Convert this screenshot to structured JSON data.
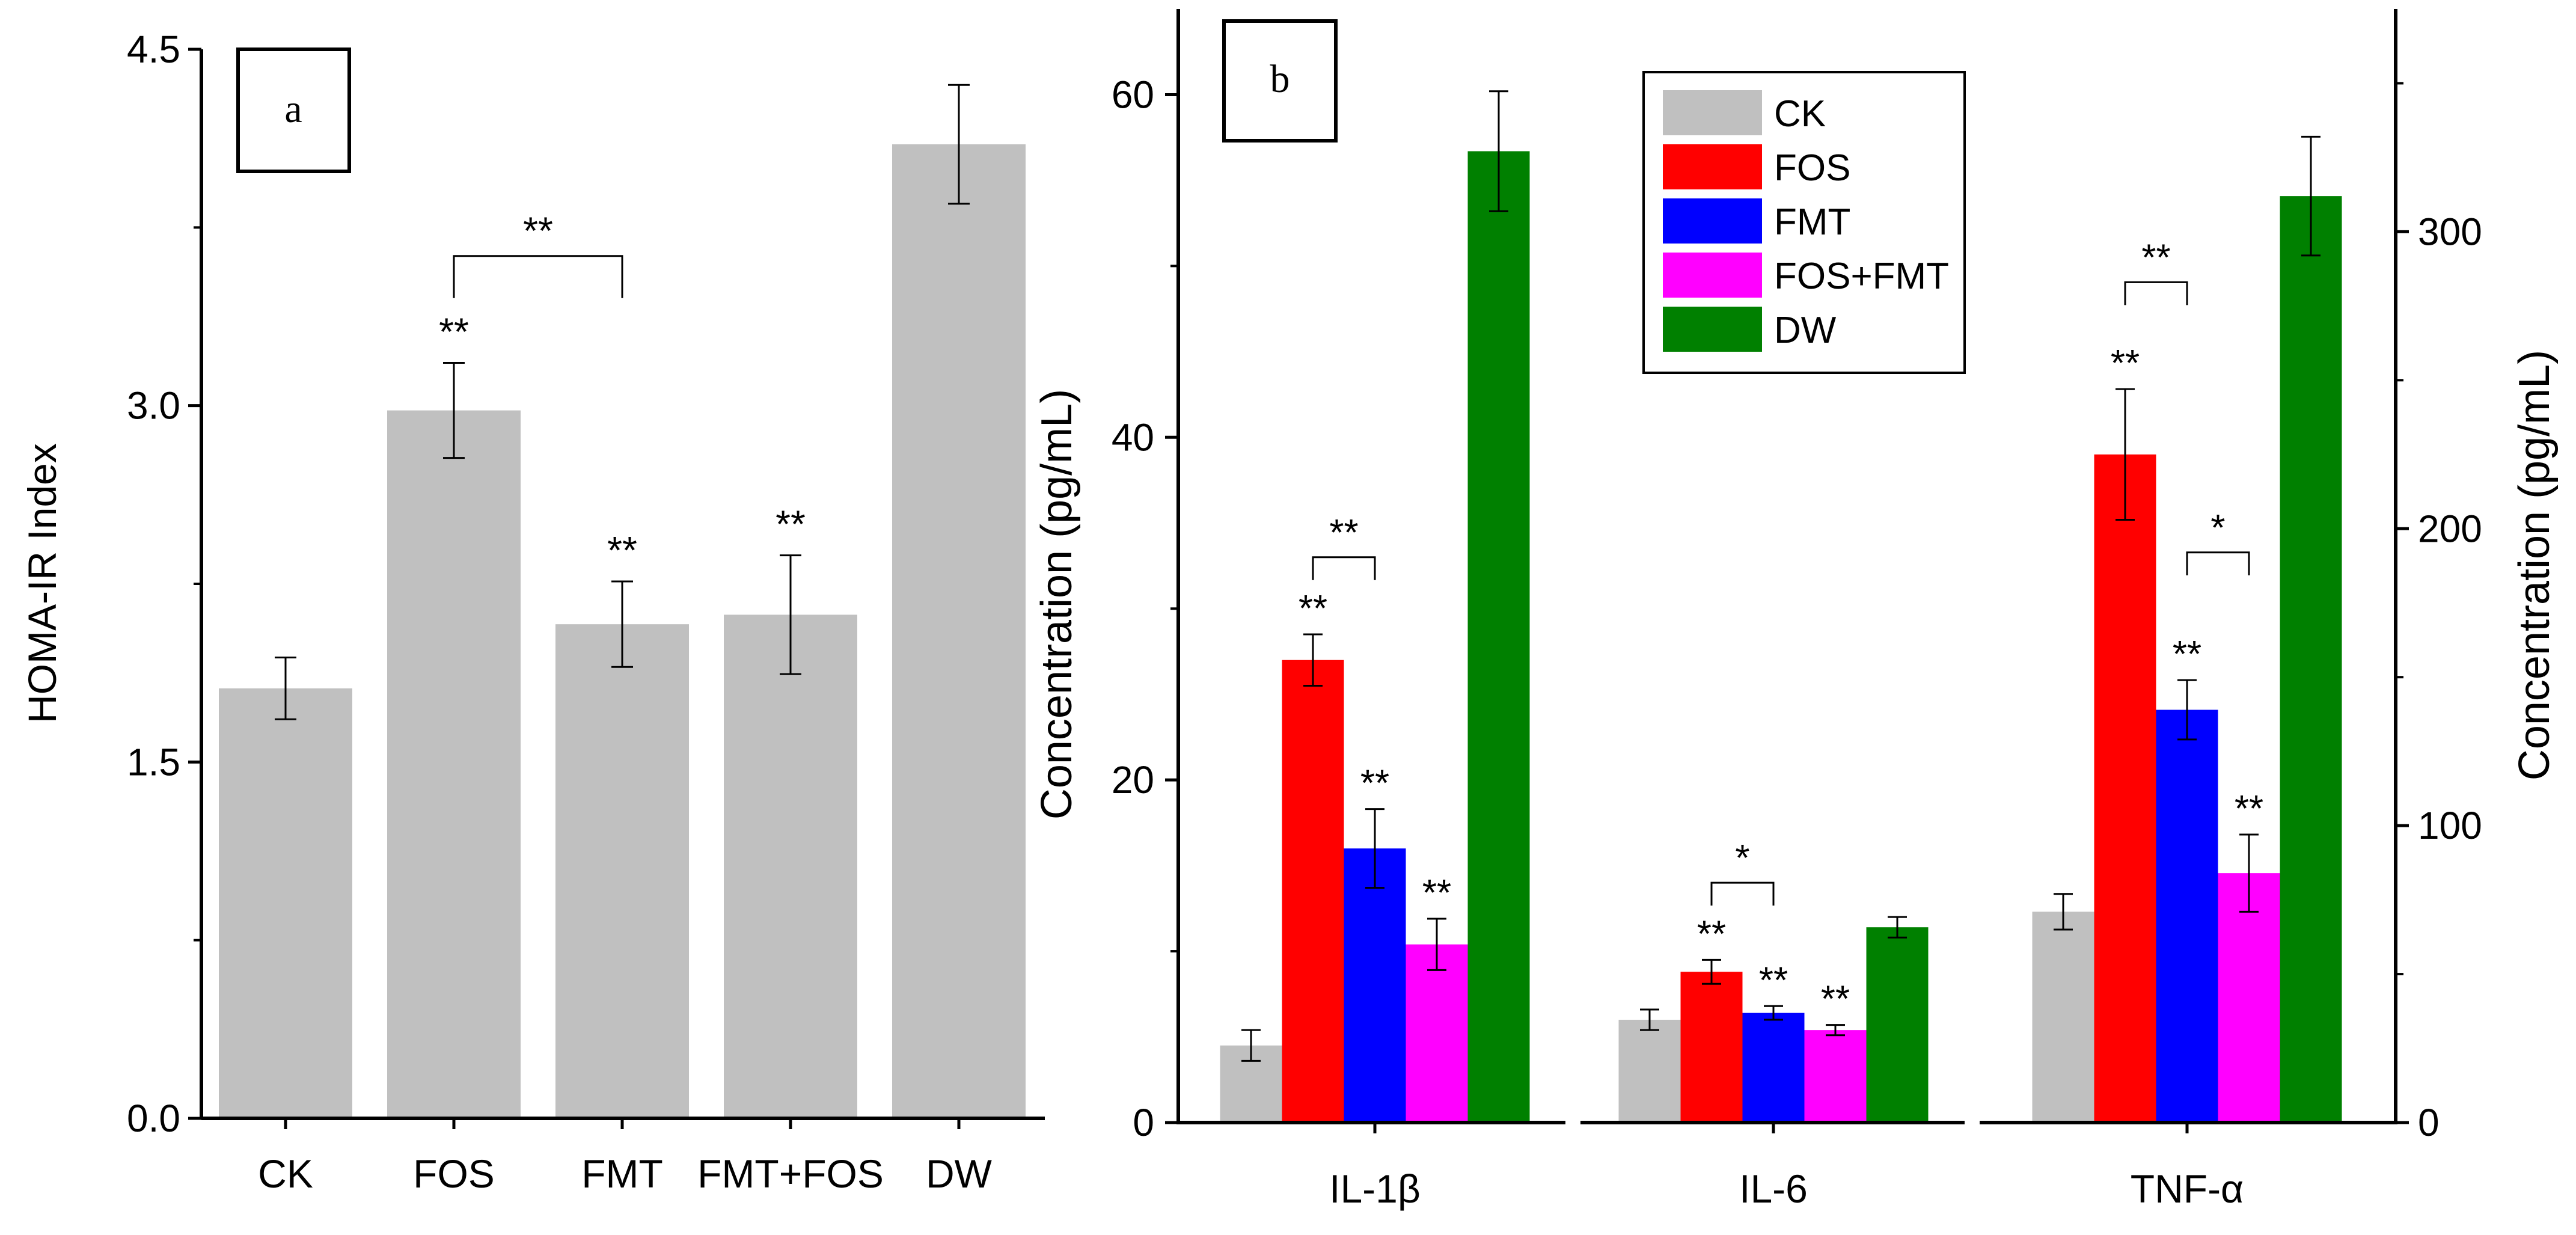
{
  "chart_data": [
    {
      "id": "a",
      "panel_label": "a",
      "type": "bar",
      "title": "",
      "xlabel": "",
      "ylabel": "HOMA-IR Index",
      "ylim": [
        0,
        4.5
      ],
      "yticks": [
        "0.0",
        "1.5",
        "3.0",
        "4.5"
      ],
      "categories": [
        "CK",
        "FOS",
        "FMT",
        "FMT+FOS",
        "DW"
      ],
      "values": [
        1.81,
        2.98,
        2.08,
        2.12,
        4.1
      ],
      "errors": [
        0.13,
        0.2,
        0.18,
        0.25,
        0.25
      ],
      "bar_color": "#c0c0c0",
      "significance": [
        "",
        "**",
        "**",
        "**",
        ""
      ],
      "brackets": [
        {
          "from": "FOS",
          "to": "FMT",
          "label": "**"
        }
      ]
    },
    {
      "id": "b",
      "panel_label": "b",
      "type": "bar",
      "title": "",
      "xlabel": "",
      "ylabel": "Concentration (pg/mL)",
      "ylim": [
        0,
        65
      ],
      "yticks": [
        "0",
        "20",
        "40",
        "60"
      ],
      "y2label": "Concentration (pg/mL)",
      "y2lim": [
        0,
        375
      ],
      "y2ticks": [
        "0",
        "100",
        "200",
        "300"
      ],
      "y2_note": "TNF-α values are plotted against the right axis",
      "categories": [
        "IL-1β",
        "IL-6",
        "TNF-α"
      ],
      "legend_position": "top-center",
      "series": [
        {
          "name": "CK",
          "color": "#c0c0c0",
          "values": [
            4.5,
            6.0,
            71
          ],
          "errors": [
            0.9,
            0.6,
            6
          ],
          "significance": [
            "",
            "",
            ""
          ]
        },
        {
          "name": "FOS",
          "color": "#ff0000",
          "values": [
            27.0,
            8.8,
            225
          ],
          "errors": [
            1.5,
            0.7,
            22
          ],
          "significance": [
            "**",
            "**",
            "**"
          ]
        },
        {
          "name": "FMT",
          "color": "#0000ff",
          "values": [
            16.0,
            6.4,
            139
          ],
          "errors": [
            2.3,
            0.4,
            10
          ],
          "significance": [
            "**",
            "**",
            "**"
          ]
        },
        {
          "name": "FOS+FMT",
          "color": "#ff00ff",
          "values": [
            10.4,
            5.4,
            84
          ],
          "errors": [
            1.5,
            0.3,
            13
          ],
          "significance": [
            "**",
            "**",
            "**"
          ]
        },
        {
          "name": "DW",
          "color": "#008000",
          "values": [
            56.7,
            11.4,
            312
          ],
          "errors": [
            3.5,
            0.6,
            20
          ],
          "significance": [
            "",
            "",
            ""
          ]
        }
      ],
      "brackets": [
        {
          "category": "IL-1β",
          "from": "FOS",
          "to": "FMT",
          "label": "**"
        },
        {
          "category": "IL-6",
          "from": "FOS",
          "to": "FMT",
          "label": "*"
        },
        {
          "category": "TNF-α",
          "from": "FOS",
          "to": "FMT",
          "label": "**"
        },
        {
          "category": "TNF-α",
          "from": "FMT",
          "to": "FOS+FMT",
          "label": "*"
        }
      ]
    }
  ]
}
